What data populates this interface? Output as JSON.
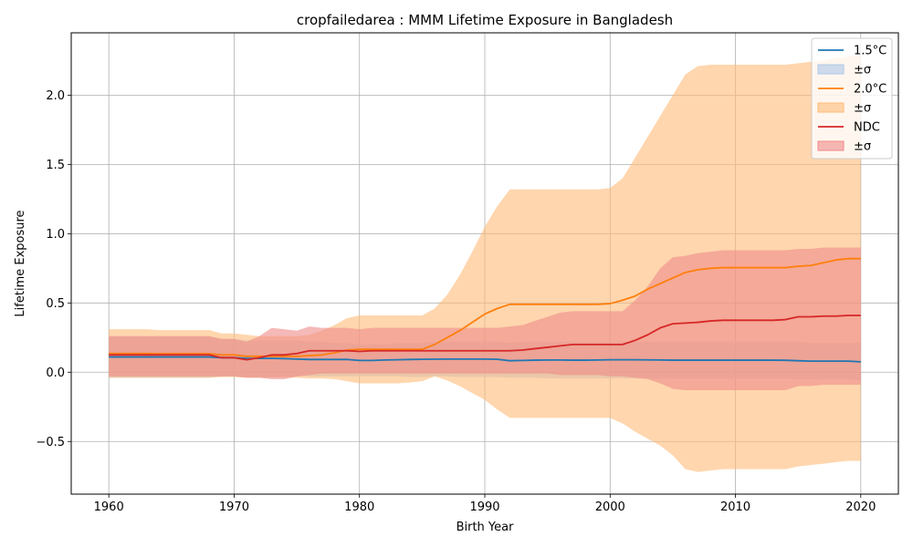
{
  "chart_data": {
    "type": "line",
    "title": "cropfailedarea : MMM Lifetime Exposure in Bangladesh",
    "xlabel": "Birth Year",
    "ylabel": "Lifetime Exposure",
    "xlim": [
      1957,
      2023
    ],
    "ylim": [
      -0.88,
      2.45
    ],
    "xticks": [
      1960,
      1970,
      1980,
      1990,
      2000,
      2010,
      2020
    ],
    "xtick_labels": [
      "1960",
      "1970",
      "1980",
      "1990",
      "2000",
      "2010",
      "2020"
    ],
    "yticks": [
      -0.5,
      0.0,
      0.5,
      1.0,
      1.5,
      2.0
    ],
    "ytick_labels": [
      "−0.5",
      "0.0",
      "0.5",
      "1.0",
      "1.5",
      "2.0"
    ],
    "grid": true,
    "legend_position": "top-right",
    "legend": [
      "1.5°C",
      "±σ",
      "2.0°C",
      "±σ",
      "NDC",
      "±σ"
    ],
    "x": [
      1960,
      1961,
      1962,
      1963,
      1964,
      1965,
      1966,
      1967,
      1968,
      1969,
      1970,
      1971,
      1972,
      1973,
      1974,
      1975,
      1976,
      1977,
      1978,
      1979,
      1980,
      1981,
      1982,
      1983,
      1984,
      1985,
      1986,
      1987,
      1988,
      1989,
      1990,
      1991,
      1992,
      1993,
      1994,
      1995,
      1996,
      1997,
      1998,
      1999,
      2000,
      2001,
      2002,
      2003,
      2004,
      2005,
      2006,
      2007,
      2008,
      2009,
      2010,
      2011,
      2012,
      2013,
      2014,
      2015,
      2016,
      2017,
      2018,
      2019,
      2020
    ],
    "series": [
      {
        "name": "1.5°C",
        "color": "#1f77b4",
        "band_color": "#aec7e8",
        "values": [
          0.11,
          0.11,
          0.11,
          0.11,
          0.11,
          0.11,
          0.11,
          0.11,
          0.11,
          0.105,
          0.105,
          0.1,
          0.1,
          0.1,
          0.098,
          0.095,
          0.092,
          0.092,
          0.092,
          0.092,
          0.085,
          0.085,
          0.088,
          0.09,
          0.092,
          0.093,
          0.094,
          0.095,
          0.095,
          0.095,
          0.095,
          0.093,
          0.083,
          0.085,
          0.087,
          0.088,
          0.088,
          0.087,
          0.087,
          0.088,
          0.09,
          0.09,
          0.09,
          0.089,
          0.088,
          0.087,
          0.087,
          0.087,
          0.087,
          0.087,
          0.087,
          0.087,
          0.087,
          0.087,
          0.086,
          0.083,
          0.08,
          0.08,
          0.08,
          0.08,
          0.075
        ],
        "lower": [
          -0.04,
          -0.04,
          -0.04,
          -0.04,
          -0.04,
          -0.04,
          -0.04,
          -0.04,
          -0.04,
          -0.03,
          -0.03,
          -0.035,
          -0.035,
          -0.035,
          -0.03,
          -0.03,
          -0.03,
          -0.03,
          -0.03,
          -0.03,
          -0.03,
          -0.03,
          -0.03,
          -0.03,
          -0.035,
          -0.035,
          -0.03,
          -0.03,
          -0.035,
          -0.035,
          -0.035,
          -0.035,
          -0.04,
          -0.04,
          -0.04,
          -0.045,
          -0.045,
          -0.045,
          -0.045,
          -0.045,
          -0.045,
          -0.045,
          -0.045,
          -0.045,
          -0.045,
          -0.045,
          -0.045,
          -0.045,
          -0.045,
          -0.045,
          -0.045,
          -0.045,
          -0.045,
          -0.045,
          -0.045,
          -0.05,
          -0.05,
          -0.05,
          -0.05,
          -0.05,
          -0.06
        ],
        "upper": [
          0.26,
          0.26,
          0.26,
          0.26,
          0.26,
          0.26,
          0.26,
          0.26,
          0.26,
          0.24,
          0.24,
          0.23,
          0.23,
          0.23,
          0.23,
          0.23,
          0.22,
          0.22,
          0.21,
          0.21,
          0.2,
          0.2,
          0.2,
          0.21,
          0.21,
          0.21,
          0.22,
          0.22,
          0.22,
          0.22,
          0.22,
          0.22,
          0.21,
          0.22,
          0.22,
          0.22,
          0.22,
          0.22,
          0.22,
          0.22,
          0.22,
          0.22,
          0.22,
          0.22,
          0.22,
          0.22,
          0.22,
          0.22,
          0.22,
          0.22,
          0.22,
          0.22,
          0.22,
          0.22,
          0.22,
          0.22,
          0.21,
          0.21,
          0.21,
          0.21,
          0.21
        ]
      },
      {
        "name": "2.0°C",
        "color": "#ff7f0e",
        "band_color": "#ffbb78",
        "values": [
          0.135,
          0.135,
          0.135,
          0.135,
          0.133,
          0.133,
          0.133,
          0.133,
          0.133,
          0.125,
          0.125,
          0.115,
          0.115,
          0.115,
          0.115,
          0.115,
          0.12,
          0.125,
          0.14,
          0.16,
          0.165,
          0.165,
          0.165,
          0.165,
          0.165,
          0.165,
          0.2,
          0.25,
          0.3,
          0.36,
          0.42,
          0.46,
          0.49,
          0.49,
          0.49,
          0.49,
          0.49,
          0.49,
          0.49,
          0.49,
          0.495,
          0.52,
          0.55,
          0.6,
          0.64,
          0.68,
          0.72,
          0.74,
          0.75,
          0.755,
          0.755,
          0.755,
          0.755,
          0.755,
          0.755,
          0.765,
          0.77,
          0.79,
          0.81,
          0.82,
          0.82
        ],
        "lower": [
          -0.04,
          -0.04,
          -0.04,
          -0.04,
          -0.04,
          -0.04,
          -0.04,
          -0.04,
          -0.04,
          -0.035,
          -0.035,
          -0.04,
          -0.04,
          -0.04,
          -0.04,
          -0.04,
          -0.045,
          -0.045,
          -0.05,
          -0.065,
          -0.08,
          -0.08,
          -0.08,
          -0.08,
          -0.075,
          -0.065,
          -0.03,
          -0.06,
          -0.1,
          -0.15,
          -0.2,
          -0.27,
          -0.33,
          -0.33,
          -0.33,
          -0.33,
          -0.33,
          -0.33,
          -0.33,
          -0.33,
          -0.33,
          -0.37,
          -0.43,
          -0.48,
          -0.53,
          -0.6,
          -0.7,
          -0.72,
          -0.71,
          -0.7,
          -0.7,
          -0.7,
          -0.7,
          -0.7,
          -0.7,
          -0.68,
          -0.67,
          -0.66,
          -0.65,
          -0.64,
          -0.64
        ],
        "upper": [
          0.31,
          0.31,
          0.31,
          0.31,
          0.305,
          0.305,
          0.305,
          0.305,
          0.305,
          0.28,
          0.28,
          0.27,
          0.26,
          0.26,
          0.26,
          0.26,
          0.27,
          0.3,
          0.34,
          0.39,
          0.41,
          0.41,
          0.41,
          0.41,
          0.41,
          0.41,
          0.46,
          0.56,
          0.7,
          0.87,
          1.05,
          1.2,
          1.32,
          1.32,
          1.32,
          1.32,
          1.32,
          1.32,
          1.32,
          1.32,
          1.33,
          1.4,
          1.55,
          1.7,
          1.85,
          2.0,
          2.15,
          2.21,
          2.22,
          2.22,
          2.22,
          2.22,
          2.22,
          2.22,
          2.22,
          2.23,
          2.24,
          2.25,
          2.27,
          2.28,
          2.29
        ]
      },
      {
        "name": "NDC",
        "color": "#d62728",
        "band_color": "#ef8a89",
        "values": [
          0.125,
          0.125,
          0.125,
          0.125,
          0.125,
          0.125,
          0.125,
          0.125,
          0.125,
          0.105,
          0.105,
          0.09,
          0.105,
          0.125,
          0.125,
          0.135,
          0.155,
          0.155,
          0.155,
          0.155,
          0.15,
          0.155,
          0.155,
          0.155,
          0.155,
          0.155,
          0.155,
          0.155,
          0.155,
          0.155,
          0.155,
          0.155,
          0.155,
          0.16,
          0.17,
          0.18,
          0.19,
          0.2,
          0.2,
          0.2,
          0.2,
          0.2,
          0.23,
          0.27,
          0.32,
          0.35,
          0.355,
          0.36,
          0.37,
          0.375,
          0.375,
          0.375,
          0.375,
          0.375,
          0.38,
          0.4,
          0.4,
          0.405,
          0.405,
          0.41,
          0.41
        ],
        "lower": [
          -0.03,
          -0.03,
          -0.03,
          -0.03,
          -0.03,
          -0.03,
          -0.03,
          -0.03,
          -0.03,
          -0.03,
          -0.03,
          -0.04,
          -0.04,
          -0.05,
          -0.05,
          -0.03,
          -0.02,
          -0.01,
          -0.01,
          -0.01,
          -0.01,
          -0.01,
          -0.01,
          -0.01,
          -0.01,
          -0.01,
          -0.01,
          -0.01,
          -0.01,
          -0.01,
          -0.01,
          -0.01,
          -0.01,
          -0.01,
          -0.01,
          -0.01,
          -0.02,
          -0.02,
          -0.02,
          -0.02,
          -0.03,
          -0.03,
          -0.04,
          -0.05,
          -0.08,
          -0.12,
          -0.13,
          -0.13,
          -0.13,
          -0.13,
          -0.13,
          -0.13,
          -0.13,
          -0.13,
          -0.13,
          -0.1,
          -0.1,
          -0.09,
          -0.09,
          -0.09,
          -0.09
        ],
        "upper": [
          0.26,
          0.26,
          0.26,
          0.26,
          0.26,
          0.26,
          0.26,
          0.26,
          0.26,
          0.24,
          0.24,
          0.22,
          0.26,
          0.32,
          0.31,
          0.3,
          0.33,
          0.32,
          0.32,
          0.32,
          0.31,
          0.32,
          0.32,
          0.32,
          0.32,
          0.32,
          0.32,
          0.32,
          0.32,
          0.32,
          0.32,
          0.32,
          0.33,
          0.34,
          0.37,
          0.4,
          0.43,
          0.44,
          0.44,
          0.44,
          0.44,
          0.44,
          0.52,
          0.62,
          0.75,
          0.83,
          0.84,
          0.86,
          0.87,
          0.88,
          0.88,
          0.88,
          0.88,
          0.88,
          0.88,
          0.89,
          0.89,
          0.9,
          0.9,
          0.9,
          0.9
        ]
      }
    ]
  }
}
